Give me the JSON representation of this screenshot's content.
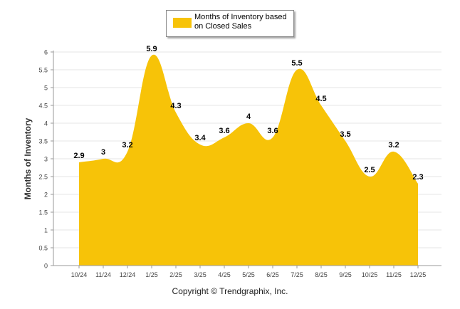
{
  "chart_data": {
    "type": "area",
    "title": "",
    "legend": {
      "label": "Months of Inventory based on Closed Sales",
      "position": "top-center"
    },
    "xlabel": "",
    "ylabel": "Months of Inventory",
    "categories": [
      "10/24",
      "11/24",
      "12/24",
      "1/25",
      "2/25",
      "3/25",
      "4/25",
      "5/25",
      "6/25",
      "7/25",
      "8/25",
      "9/25",
      "10/25",
      "11/25",
      "12/25"
    ],
    "series": [
      {
        "name": "Months of Inventory based on Closed Sales",
        "values": [
          2.9,
          3,
          3.2,
          5.9,
          4.3,
          3.4,
          3.6,
          4,
          3.6,
          5.5,
          4.5,
          3.5,
          2.5,
          3.2,
          2.3
        ],
        "labels": [
          "2.9",
          "3",
          "3.2",
          "5.9",
          "4.3",
          "3.4",
          "3.6",
          "4",
          "3.6",
          "5.5",
          "4.5",
          "3.5",
          "2.5",
          "3.2",
          "2.3"
        ]
      }
    ],
    "ylim": [
      0,
      6
    ],
    "yticks": [
      "0",
      "0.5",
      "1",
      "1.5",
      "2",
      "2.5",
      "3",
      "3.5",
      "4",
      "4.5",
      "5",
      "5.5",
      "6"
    ],
    "grid": true,
    "colors": {
      "fill": "#f7c308",
      "grid": "#e6e6e6",
      "axis": "#999999"
    }
  },
  "footer": {
    "copyright": "Copyright © Trendgraphix, Inc."
  }
}
